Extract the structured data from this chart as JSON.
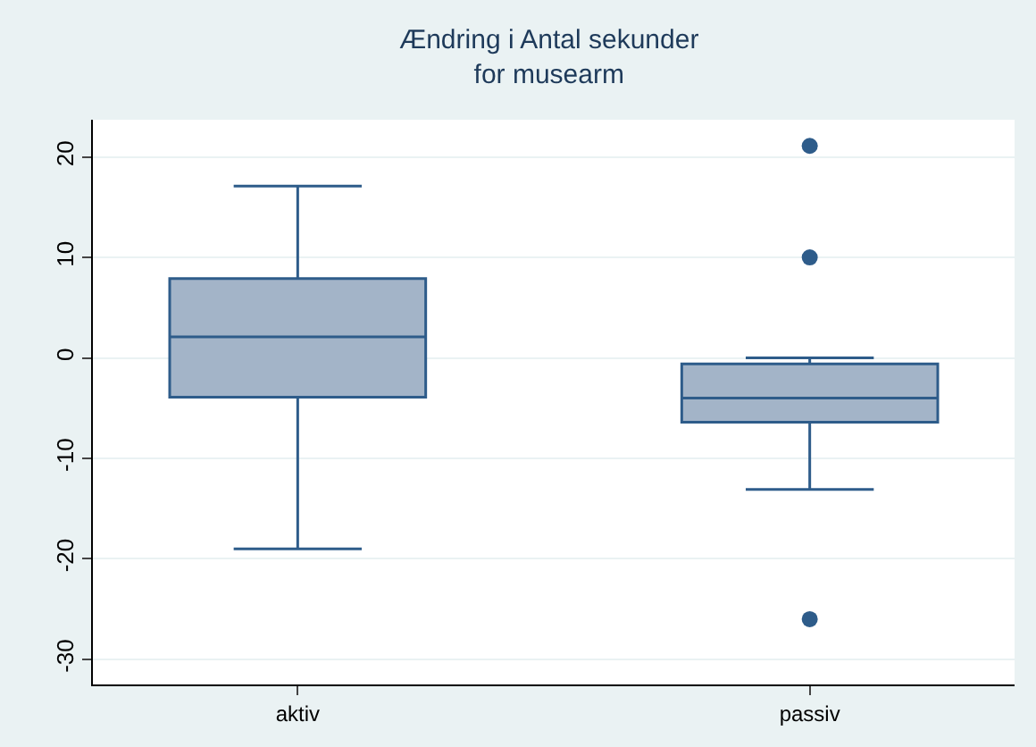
{
  "chart_data": {
    "type": "box",
    "title": "Ændring i Antal sekunder\nfor musearm",
    "categories": [
      "aktiv",
      "passiv"
    ],
    "boxes": [
      {
        "low": -19.0,
        "q1": -3.9,
        "median": 2.1,
        "q3": 7.9,
        "high": 17.1
      },
      {
        "low": -13.1,
        "q1": -6.4,
        "median": -4.0,
        "q3": -0.6,
        "high": 0.0,
        "outliers": [
          21.1,
          10.0,
          -26.0
        ]
      }
    ],
    "color": "#a3b4c8",
    "ylim": [
      -32.5,
      23.7
    ],
    "yticks": [
      -30,
      -20,
      -10,
      0,
      10,
      20
    ],
    "grid": "y",
    "marker": "circle"
  }
}
